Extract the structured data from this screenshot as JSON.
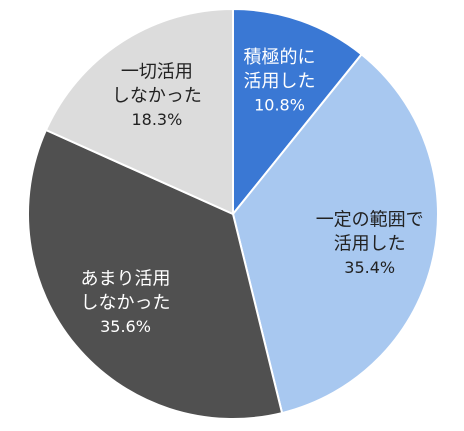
{
  "chart_data": {
    "type": "pie",
    "title": "",
    "legend": "none",
    "slices": [
      {
        "category_lines": [
          "積極的に",
          "活用した"
        ],
        "percent_label": "10.8%",
        "value": 10.8,
        "color": "#3a78d4",
        "text_color": "#ffffff"
      },
      {
        "category_lines": [
          "一定の範囲で",
          "活用した"
        ],
        "percent_label": "35.4%",
        "value": 35.4,
        "color": "#a8c8f0",
        "text_color": "#222222"
      },
      {
        "category_lines": [
          "あまり活用",
          "しなかった"
        ],
        "percent_label": "35.6%",
        "value": 35.6,
        "color": "#505050",
        "text_color": "#ffffff"
      },
      {
        "category_lines": [
          "一切活用",
          "しなかった"
        ],
        "percent_label": "18.3%",
        "value": 18.3,
        "color": "#dcdcdc",
        "text_color": "#222222"
      }
    ]
  }
}
